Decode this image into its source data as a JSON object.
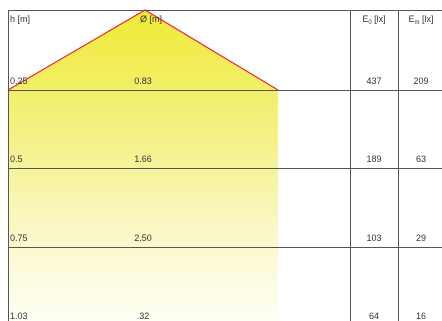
{
  "header": {
    "height_label": "h [m]",
    "diameter_label": "Ø [m]",
    "e0_label_main": "E",
    "e0_label_sub": "0",
    "e0_label_unit": " [lx]",
    "em_label_main": "E",
    "em_label_sub": "m",
    "em_label_unit": " [lx]"
  },
  "rows": [
    {
      "h": "0.25",
      "d": "0.83",
      "e0": "437",
      "em": "209"
    },
    {
      "h": "0.5",
      "d": "1.66",
      "e0": "189",
      "em": "63"
    },
    {
      "h": "0.75",
      "d": "2.50",
      "e0": "103",
      "em": "29"
    },
    {
      "h": "1.03",
      "d": ".32",
      "e0": "64",
      "em": "16"
    }
  ],
  "colors": {
    "cone_top": "#f0ec3a",
    "cone_bottom": "#fffff4",
    "outline": "#e8243c",
    "grid": "#555555"
  }
}
